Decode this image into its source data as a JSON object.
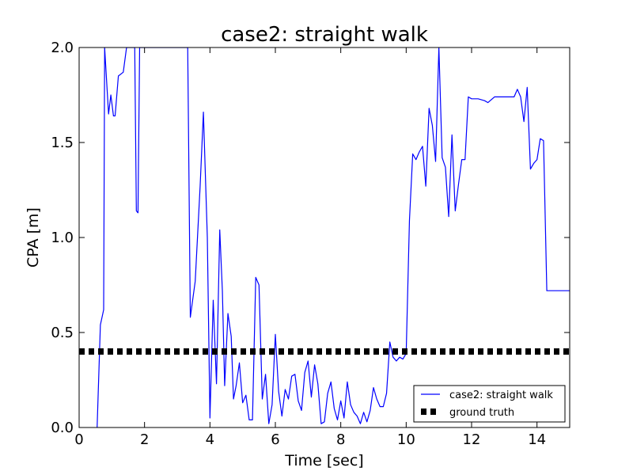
{
  "chart_data": {
    "type": "line",
    "title": "case2: straight walk",
    "xlabel": "Time [sec]",
    "ylabel": "CPA [m]",
    "xlim": [
      0,
      15
    ],
    "ylim": [
      0,
      2.0
    ],
    "xticks": [
      0,
      2,
      4,
      6,
      8,
      10,
      12,
      14
    ],
    "yticks": [
      0.0,
      0.5,
      1.0,
      1.5,
      2.0
    ],
    "xtick_labels": [
      "0",
      "2",
      "4",
      "6",
      "8",
      "10",
      "12",
      "14"
    ],
    "ytick_labels": [
      "0.0",
      "0.5",
      "1.0",
      "1.5",
      "2.0"
    ],
    "grid": false,
    "legend_position": "lower-right",
    "series": [
      {
        "name": "case2: straight walk",
        "color": "#0000ff",
        "style": "solid",
        "x": [
          0.55,
          0.65,
          0.75,
          0.78,
          0.9,
          0.97,
          1.05,
          1.1,
          1.2,
          1.35,
          1.45,
          1.5,
          1.7,
          1.75,
          1.8,
          1.85,
          3.32,
          3.4,
          3.55,
          3.7,
          3.8,
          3.92,
          4.0,
          4.1,
          4.2,
          4.3,
          4.38,
          4.45,
          4.55,
          4.65,
          4.72,
          4.8,
          4.9,
          5.0,
          5.1,
          5.2,
          5.3,
          5.4,
          5.5,
          5.6,
          5.7,
          5.8,
          5.9,
          6.0,
          6.1,
          6.2,
          6.3,
          6.4,
          6.5,
          6.6,
          6.7,
          6.8,
          6.9,
          7.0,
          7.1,
          7.2,
          7.3,
          7.4,
          7.5,
          7.6,
          7.7,
          7.8,
          7.9,
          8.0,
          8.1,
          8.2,
          8.3,
          8.4,
          8.5,
          8.6,
          8.7,
          8.8,
          8.9,
          9.0,
          9.1,
          9.2,
          9.3,
          9.4,
          9.5,
          9.6,
          9.7,
          9.8,
          9.9,
          10.0,
          10.1,
          10.2,
          10.3,
          10.4,
          10.5,
          10.6,
          10.7,
          10.8,
          10.9,
          11.0,
          11.1,
          11.2,
          11.3,
          11.4,
          11.5,
          11.6,
          11.7,
          11.8,
          11.9,
          12.0,
          12.2,
          12.4,
          12.5,
          12.7,
          12.8,
          13.0,
          13.2,
          13.3,
          13.4,
          13.5,
          13.6,
          13.7,
          13.8,
          13.9,
          14.0,
          14.1,
          14.2,
          14.3,
          15.0
        ],
        "y": [
          0.0,
          0.54,
          0.62,
          2.0,
          1.65,
          1.75,
          1.64,
          1.64,
          1.85,
          1.87,
          2.0,
          2.0,
          2.0,
          1.14,
          1.13,
          2.0,
          2.0,
          0.58,
          0.77,
          1.27,
          1.66,
          1.0,
          0.05,
          0.67,
          0.23,
          1.04,
          0.72,
          0.22,
          0.6,
          0.48,
          0.15,
          0.22,
          0.34,
          0.13,
          0.17,
          0.04,
          0.04,
          0.79,
          0.75,
          0.15,
          0.28,
          0.02,
          0.12,
          0.49,
          0.19,
          0.06,
          0.2,
          0.15,
          0.27,
          0.28,
          0.14,
          0.09,
          0.29,
          0.35,
          0.16,
          0.33,
          0.23,
          0.02,
          0.03,
          0.18,
          0.24,
          0.1,
          0.04,
          0.14,
          0.05,
          0.24,
          0.12,
          0.08,
          0.06,
          0.02,
          0.08,
          0.03,
          0.09,
          0.21,
          0.15,
          0.11,
          0.11,
          0.18,
          0.45,
          0.37,
          0.35,
          0.37,
          0.36,
          0.39,
          1.09,
          1.44,
          1.41,
          1.45,
          1.48,
          1.27,
          1.68,
          1.59,
          1.4,
          2.0,
          1.42,
          1.37,
          1.11,
          1.54,
          1.14,
          1.28,
          1.41,
          1.41,
          1.74,
          1.73,
          1.73,
          1.72,
          1.71,
          1.74,
          1.74,
          1.74,
          1.74,
          1.74,
          1.78,
          1.74,
          1.61,
          1.79,
          1.36,
          1.39,
          1.41,
          1.52,
          1.51,
          0.72,
          0.72
        ]
      },
      {
        "name": "ground truth",
        "color": "#000000",
        "style": "dashed",
        "x": [
          0,
          15
        ],
        "y": [
          0.4,
          0.4
        ]
      }
    ]
  }
}
